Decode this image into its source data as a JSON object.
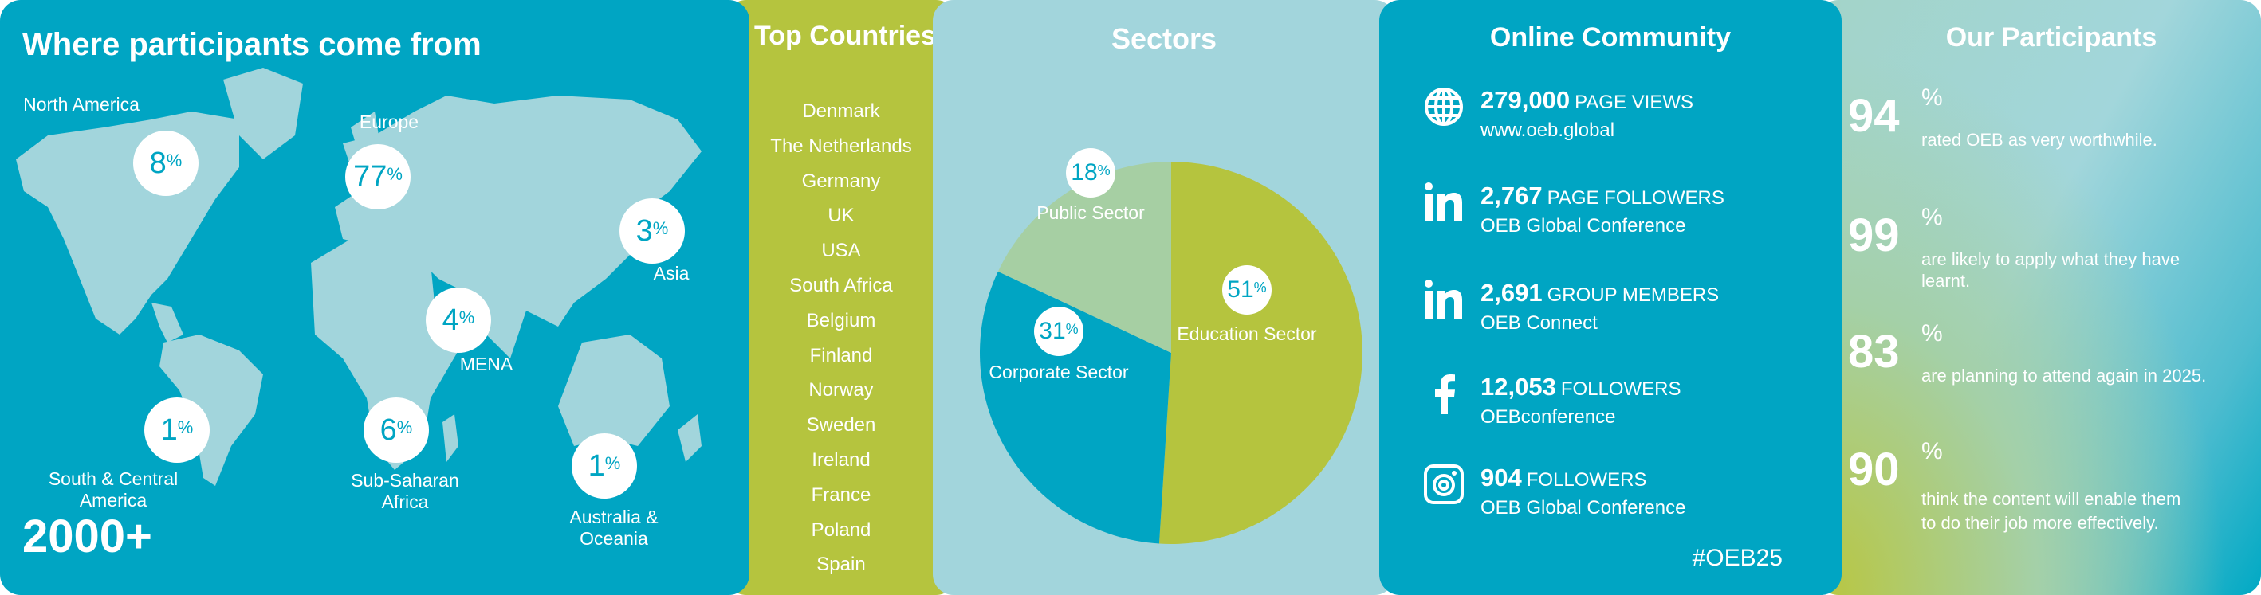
{
  "map": {
    "title": "Where participants come from",
    "total": "2000+",
    "regions": [
      {
        "name": "North America",
        "value": "8"
      },
      {
        "name": "Europe",
        "value": "77"
      },
      {
        "name": "Asia",
        "value": "3"
      },
      {
        "name": "MENA",
        "value": "4"
      },
      {
        "name": "South & Central America",
        "value": "1"
      },
      {
        "name": "Sub-Saharan Africa",
        "value": "6"
      },
      {
        "name": "Australia & Oceania",
        "value": "1"
      }
    ],
    "percent_sign": "%"
  },
  "countries": {
    "title": "Top Countries",
    "items": [
      "Denmark",
      "The Netherlands",
      "Germany",
      "UK",
      "USA",
      "South Africa",
      "Belgium",
      "Finland",
      "Norway",
      "Sweden",
      "Ireland",
      "France",
      "Poland",
      "Spain"
    ]
  },
  "sectors": {
    "title": "Sectors",
    "chart_data": {
      "type": "pie",
      "slices": [
        {
          "label": "Education Sector",
          "value": 51,
          "color": "#b5c43e"
        },
        {
          "label": "Corporate Sector",
          "value": 31,
          "color": "#00a5c3"
        },
        {
          "label": "Public Sector",
          "value": 18,
          "color": "#a6cfa3"
        }
      ]
    }
  },
  "online": {
    "title": "Online Community",
    "hashtag": "#OEB25",
    "items": [
      {
        "icon": "globe-icon",
        "number": "279,000",
        "label": "PAGE VIEWS",
        "sub": "www.oeb.global"
      },
      {
        "icon": "linkedin-icon",
        "number": "2,767",
        "label": "PAGE FOLLOWERS",
        "sub": "OEB Global Conference"
      },
      {
        "icon": "linkedin-icon",
        "number": "2,691",
        "label": "GROUP MEMBERS",
        "sub": "OEB Connect"
      },
      {
        "icon": "facebook-icon",
        "number": "12,053",
        "label": "FOLLOWERS",
        "sub": "OEBconference"
      },
      {
        "icon": "instagram-icon",
        "number": "904",
        "label": "FOLLOWERS",
        "sub": "OEB Global Conference"
      }
    ]
  },
  "participants": {
    "title": "Our Participants",
    "stats": [
      {
        "value": "94",
        "text": "rated OEB as very worthwhile."
      },
      {
        "value": "99",
        "text": "are likely to apply what they have learnt."
      },
      {
        "value": "83",
        "text": "are planning to attend again in 2025."
      },
      {
        "value": "90",
        "text": "think the content will enable them to do their job more effectively."
      }
    ]
  }
}
